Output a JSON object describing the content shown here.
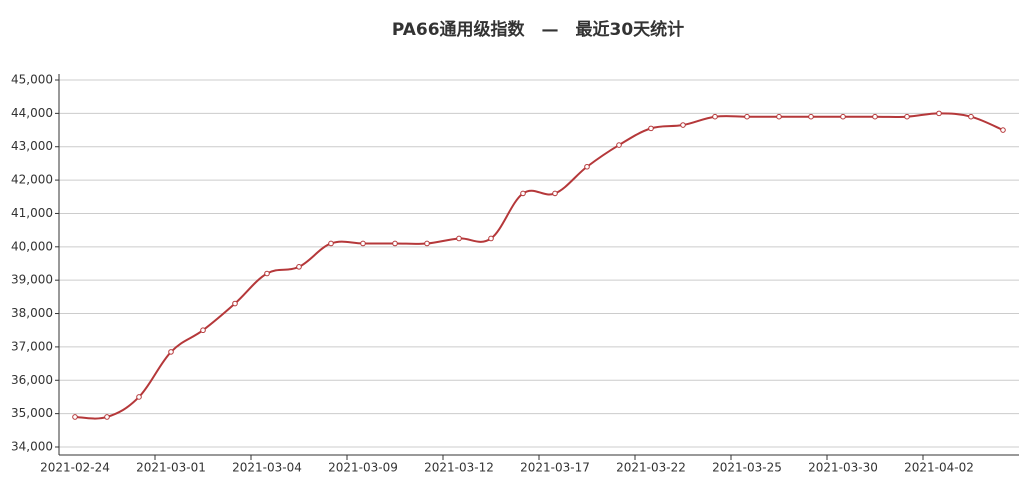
{
  "chart_data": {
    "type": "line",
    "title": "PA66通用级指数　—　最近30天统计",
    "categories": [
      "2021-02-24",
      null,
      null,
      "2021-03-01",
      null,
      null,
      "2021-03-04",
      null,
      null,
      "2021-03-09",
      null,
      null,
      "2021-03-12",
      null,
      null,
      "2021-03-17",
      null,
      null,
      "2021-03-22",
      null,
      null,
      "2021-03-25",
      null,
      null,
      "2021-03-30",
      null,
      null,
      "2021-04-02",
      null,
      null
    ],
    "series": [
      {
        "name": "PA66通用级指数",
        "color": "#b5383a",
        "values": [
          34900,
          34900,
          35500,
          36850,
          37500,
          38300,
          39200,
          39400,
          40100,
          40100,
          40100,
          40100,
          40250,
          40250,
          41600,
          41600,
          42400,
          43050,
          43550,
          43650,
          43900,
          43900,
          43900,
          43900,
          43900,
          43900,
          43900,
          44000,
          43900,
          43500
        ]
      }
    ],
    "ylim": [
      33760,
      45000
    ],
    "yticks": [
      {
        "value": 34000,
        "label": "34,000"
      },
      {
        "value": 35000,
        "label": "35,000"
      },
      {
        "value": 36000,
        "label": "36,000"
      },
      {
        "value": 37000,
        "label": "37,000"
      },
      {
        "value": 38000,
        "label": "38,000"
      },
      {
        "value": 39000,
        "label": "39,000"
      },
      {
        "value": 40000,
        "label": "40,000"
      },
      {
        "value": 41000,
        "label": "41,000"
      },
      {
        "value": 42000,
        "label": "42,000"
      },
      {
        "value": 43000,
        "label": "43,000"
      },
      {
        "value": 44000,
        "label": "44,000"
      },
      {
        "value": 45000,
        "label": "45,000"
      }
    ],
    "grid": true
  }
}
